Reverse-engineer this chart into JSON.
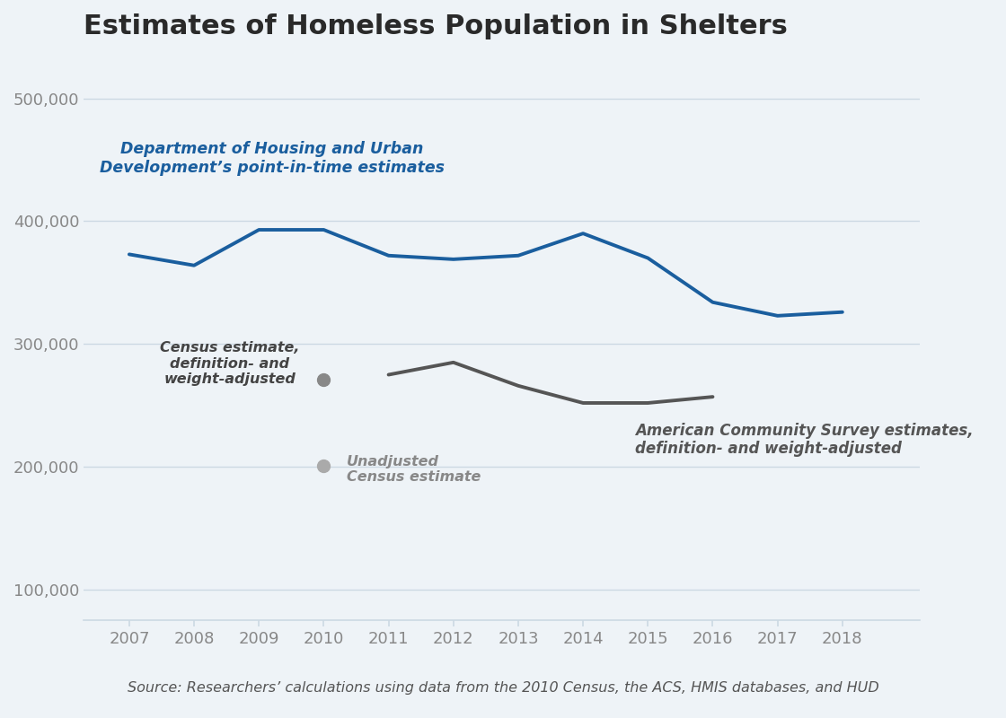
{
  "title": "Estimates of Homeless Population in Shelters",
  "background_color": "#eef3f7",
  "plot_bg_color": "#eef3f7",
  "source_text": "Source: Researchers’ calculations using data from the 2010 Census, the ACS, HMIS databases, and HUD",
  "hud_years": [
    2007,
    2008,
    2009,
    2010,
    2011,
    2012,
    2013,
    2014,
    2015,
    2016,
    2017,
    2018
  ],
  "hud_values": [
    373000,
    364000,
    393000,
    393000,
    372000,
    369000,
    372000,
    390000,
    370000,
    334000,
    323000,
    326000
  ],
  "hud_color": "#1a5e9e",
  "hud_label_line1": "Department of Housing and Urban",
  "hud_label_line2": "Development’s point-in-time estimates",
  "acs_years": [
    2011,
    2012,
    2013,
    2014,
    2015,
    2016
  ],
  "acs_values": [
    275000,
    285000,
    266000,
    252000,
    252000,
    257000
  ],
  "acs_color": "#555555",
  "acs_label_line1": "American Community Survey estimates,",
  "acs_label_line2": "definition- and weight-adjusted",
  "census_adjusted_year": 2010,
  "census_adjusted_value": 271000,
  "census_adjusted_color": "#888888",
  "census_adjusted_label_line1": "Census estimate,",
  "census_adjusted_label_line2": "definition- and",
  "census_adjusted_label_line3": "weight-adjusted",
  "census_unadjusted_year": 2010,
  "census_unadjusted_value": 201000,
  "census_unadjusted_color": "#aaaaaa",
  "census_unadjusted_label_line1": "Unadjusted",
  "census_unadjusted_label_line2": "Census estimate",
  "ylim": [
    75000,
    530000
  ],
  "yticks": [
    100000,
    200000,
    300000,
    400000,
    500000
  ],
  "ytick_labels": [
    "100,000",
    "200,000",
    "300,000",
    "400,000",
    "500,000"
  ],
  "xlim": [
    2006.3,
    2019.2
  ],
  "xticks": [
    2007,
    2008,
    2009,
    2010,
    2011,
    2012,
    2013,
    2014,
    2015,
    2016,
    2017,
    2018
  ],
  "grid_color": "#ccd9e3",
  "axis_color": "#ccd9e3",
  "tick_color": "#888888",
  "tick_fontsize": 13,
  "title_fontsize": 22,
  "source_fontsize": 11.5
}
